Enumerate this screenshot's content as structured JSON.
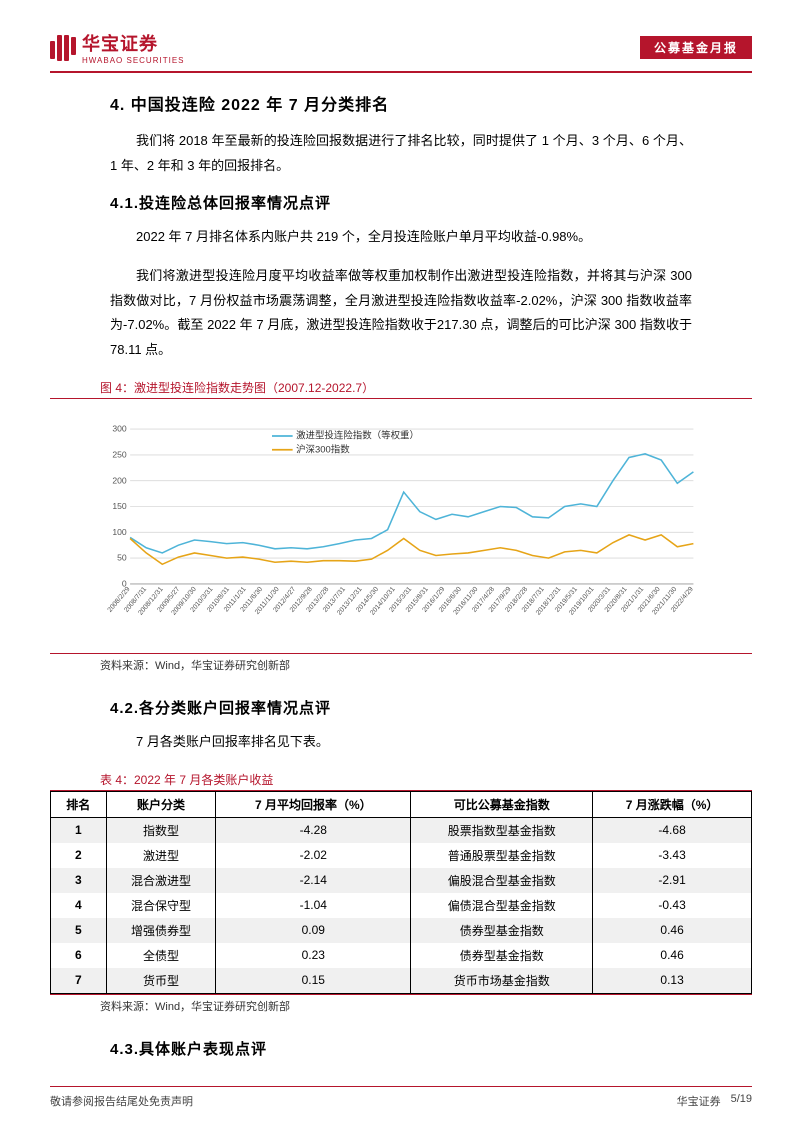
{
  "header": {
    "logo_cn": "华宝证券",
    "logo_en": "HWABAO SECURITIES",
    "badge": "公募基金月报"
  },
  "section4": {
    "title": "4. 中国投连险 2022 年 7 月分类排名",
    "intro": "我们将 2018 年至最新的投连险回报数据进行了排名比较，同时提供了 1 个月、3 个月、6 个月、1 年、2 年和 3 年的回报排名。"
  },
  "section41": {
    "title": "4.1.投连险总体回报率情况点评",
    "p1": "2022 年 7 月排名体系内账户共 219 个，全月投连险账户单月平均收益-0.98%。",
    "p2": "我们将激进型投连险月度平均收益率做等权重加权制作出激进型投连险指数，并将其与沪深 300 指数做对比，7 月份权益市场震荡调整，全月激进型投连险指数收益率-2.02%，沪深 300 指数收益率为-7.02%。截至 2022 年 7 月底，激进型投连险指数收于217.30 点，调整后的可比沪深 300 指数收于 78.11 点。"
  },
  "figure4": {
    "title": "图 4：激进型投连险指数走势图（2007.12-2022.7）",
    "source": "资料来源：Wind，华宝证券研究创新部",
    "legend1": "激进型投连险指数（等权重）",
    "legend2": "沪深300指数",
    "ylim": [
      0,
      300
    ],
    "yticks": [
      0,
      50,
      100,
      150,
      200,
      250,
      300
    ],
    "xticks": [
      "2008/2/29",
      "2008/7/31",
      "2008/12/31",
      "2009/5/27",
      "2009/10/30",
      "2010/3/31",
      "2010/8/31",
      "2011/1/31",
      "2011/6/30",
      "2011/11/30",
      "2012/4/27",
      "2012/9/28",
      "2013/2/28",
      "2013/7/31",
      "2013/12/31",
      "2014/5/30",
      "2014/10/31",
      "2015/3/31",
      "2015/8/31",
      "2016/1/29",
      "2016/6/30",
      "2016/11/30",
      "2017/4/28",
      "2017/9/29",
      "2018/2/28",
      "2018/7/31",
      "2018/12/31",
      "2019/5/31",
      "2019/10/31",
      "2020/3/31",
      "2020/8/31",
      "2021/1/31",
      "2021/6/30",
      "2021/11/30",
      "2022/4/29"
    ],
    "series1_color": "#4eb4d8",
    "series2_color": "#e6a417",
    "grid_color": "#d9d9d9",
    "bg_color": "#ffffff",
    "series1": [
      90,
      70,
      60,
      75,
      85,
      82,
      78,
      80,
      75,
      68,
      70,
      68,
      72,
      78,
      85,
      88,
      105,
      178,
      140,
      125,
      135,
      130,
      140,
      150,
      148,
      130,
      128,
      150,
      155,
      150,
      200,
      245,
      252,
      240,
      195,
      217
    ],
    "series2": [
      88,
      60,
      38,
      52,
      60,
      55,
      50,
      52,
      48,
      42,
      44,
      42,
      45,
      45,
      44,
      48,
      65,
      88,
      65,
      55,
      58,
      60,
      65,
      70,
      65,
      55,
      50,
      62,
      65,
      60,
      80,
      95,
      85,
      95,
      72,
      78
    ]
  },
  "section42": {
    "title": "4.2.各分类账户回报率情况点评",
    "p1": "7 月各类账户回报率排名见下表。"
  },
  "table4": {
    "title": "表 4：2022 年 7 月各类账户收益",
    "source": "资料来源：Wind，华宝证券研究创新部",
    "columns": [
      "排名",
      "账户分类",
      "7 月平均回报率（%）",
      "可比公募基金指数",
      "7 月涨跌幅（%）"
    ],
    "rows": [
      [
        "1",
        "指数型",
        "-4.28",
        "股票指数型基金指数",
        "-4.68"
      ],
      [
        "2",
        "激进型",
        "-2.02",
        "普通股票型基金指数",
        "-3.43"
      ],
      [
        "3",
        "混合激进型",
        "-2.14",
        "偏股混合型基金指数",
        "-2.91"
      ],
      [
        "4",
        "混合保守型",
        "-1.04",
        "偏债混合型基金指数",
        "-0.43"
      ],
      [
        "5",
        "增强债券型",
        "0.09",
        "债券型基金指数",
        "0.46"
      ],
      [
        "6",
        "全债型",
        "0.23",
        "债券型基金指数",
        "0.46"
      ],
      [
        "7",
        "货币型",
        "0.15",
        "货币市场基金指数",
        "0.13"
      ]
    ]
  },
  "section43": {
    "title": "4.3.具体账户表现点评"
  },
  "footer": {
    "left": "敬请参阅报告结尾处免责声明",
    "brand": "华宝证券",
    "page": "5/19"
  }
}
